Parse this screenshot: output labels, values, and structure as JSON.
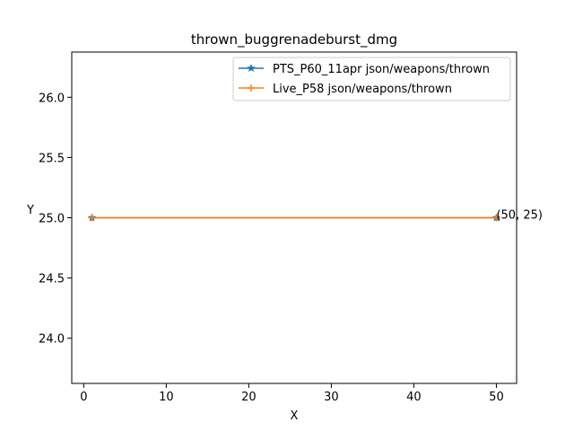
{
  "chart_data": {
    "type": "line",
    "title": "thrown_buggrenadeburst_dmg",
    "xlabel": "X",
    "ylabel": "Y",
    "xlim": [
      -1.45,
      52.45
    ],
    "ylim": [
      23.625,
      26.375
    ],
    "xticks": [
      {
        "value": 0,
        "label": "0"
      },
      {
        "value": 10,
        "label": "10"
      },
      {
        "value": 20,
        "label": "20"
      },
      {
        "value": 30,
        "label": "30"
      },
      {
        "value": 40,
        "label": "40"
      },
      {
        "value": 50,
        "label": "50"
      }
    ],
    "yticks": [
      {
        "value": 24.0,
        "label": "24.0"
      },
      {
        "value": 24.5,
        "label": "24.5"
      },
      {
        "value": 25.0,
        "label": "25.0"
      },
      {
        "value": 25.5,
        "label": "25.5"
      },
      {
        "value": 26.0,
        "label": "26.0"
      }
    ],
    "grid": false,
    "legend_position": "upper right",
    "series": [
      {
        "name": "PTS_P60_11apr json/weapons/thrown",
        "color": "#1f77b4",
        "marker": "star",
        "x": [
          1,
          50
        ],
        "y": [
          25,
          25
        ]
      },
      {
        "name": "Live_P58 json/weapons/thrown",
        "color": "#ff7f0e",
        "marker": "plus",
        "x": [
          1,
          50
        ],
        "y": [
          25,
          25
        ]
      }
    ],
    "annotations": [
      {
        "text": "(50, 25)",
        "x": 50,
        "y": 25
      }
    ]
  }
}
